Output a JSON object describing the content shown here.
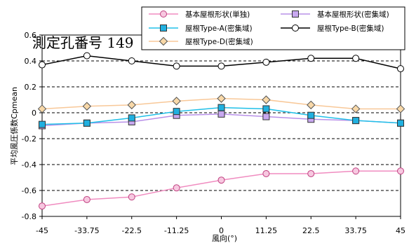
{
  "chart_data": {
    "type": "line",
    "title": "測定孔番号 149",
    "xlabel": "風向(°)",
    "ylabel": "平均風圧係数Cpmean",
    "x": [
      -45,
      -33.75,
      -22.5,
      -11.25,
      0,
      11.25,
      22.5,
      33.75,
      45
    ],
    "x_tick_labels": [
      "-45",
      "-33.75",
      "-22.5",
      "-11.25",
      "0",
      "11.25",
      "22.5",
      "33.75",
      "45"
    ],
    "y_ticks": [
      -0.8,
      -0.6,
      -0.4,
      -0.2,
      0,
      0.2,
      0.4,
      0.6
    ],
    "y_tick_labels": [
      "-0.8",
      "-0.6",
      "-0.4",
      "-0.2",
      "0",
      "0.2",
      "0.4",
      "0.6"
    ],
    "xlim": [
      -45,
      45
    ],
    "ylim": [
      -0.8,
      0.6
    ],
    "grid": "horizontal",
    "legend_position": "top-right",
    "series": [
      {
        "name": "基本屋根形状(単独)",
        "color": "#f08cc0",
        "marker": "circle",
        "marker_fill": "#f7c8e0",
        "values": [
          -0.72,
          -0.67,
          -0.65,
          -0.58,
          -0.52,
          -0.47,
          -0.47,
          -0.45,
          -0.45
        ]
      },
      {
        "name": "基本屋根形状(密集域)",
        "color": "#b890e8",
        "marker": "square",
        "marker_fill": "#c8a8f0",
        "values": [
          -0.1,
          -0.08,
          -0.07,
          -0.02,
          -0.01,
          -0.03,
          -0.05,
          -0.06,
          -0.08
        ]
      },
      {
        "name": "屋根Type-A(密集域)",
        "color": "#20c0e8",
        "marker": "square",
        "marker_fill": "#20b0e0",
        "values": [
          -0.09,
          -0.08,
          -0.04,
          0.01,
          0.04,
          0.03,
          -0.02,
          -0.06,
          -0.08
        ]
      },
      {
        "name": "屋根Type-B(密集域)",
        "color": "#000000",
        "marker": "circle",
        "marker_fill": "#ffffff",
        "values": [
          0.37,
          0.44,
          0.4,
          0.36,
          0.36,
          0.39,
          0.42,
          0.42,
          0.34
        ]
      },
      {
        "name": "屋根Type-D(密集域)",
        "color": "#f8c898",
        "marker": "diamond",
        "marker_fill": "#f8d8a8",
        "values": [
          0.03,
          0.05,
          0.06,
          0.09,
          0.11,
          0.1,
          0.06,
          0.03,
          0.03
        ]
      }
    ]
  }
}
